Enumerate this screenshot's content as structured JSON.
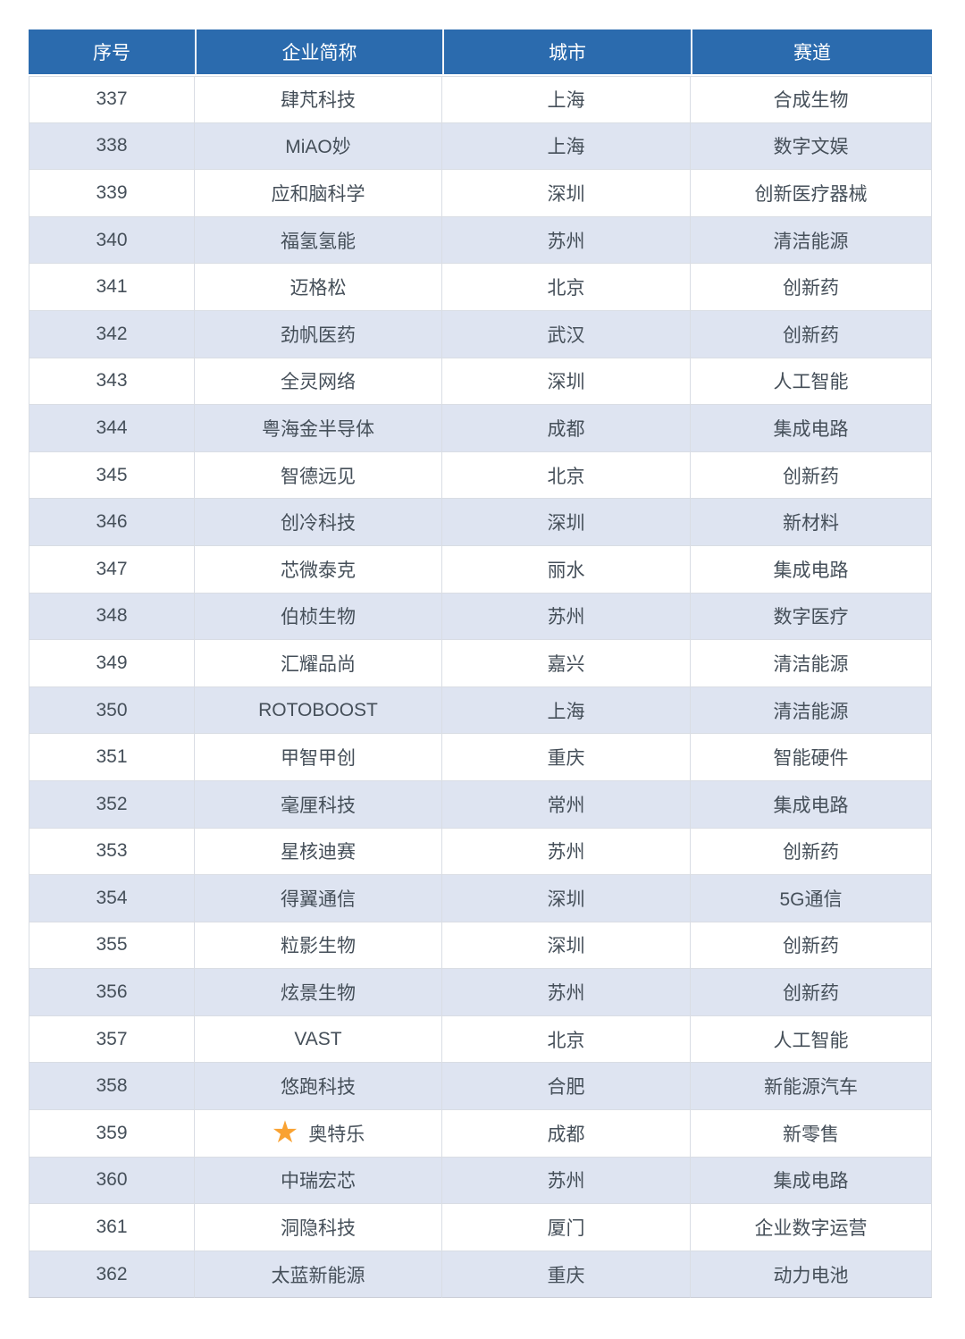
{
  "table": {
    "headers": [
      {
        "key": "no",
        "label": "序号"
      },
      {
        "key": "company",
        "label": "企业简称"
      },
      {
        "key": "city",
        "label": "城市"
      },
      {
        "key": "track",
        "label": "赛道"
      }
    ],
    "rows": [
      {
        "no": "337",
        "company": "肆芃科技",
        "city": "上海",
        "track": "合成生物",
        "starred": false
      },
      {
        "no": "338",
        "company": "MiAO妙",
        "city": "上海",
        "track": "数字文娱",
        "starred": false
      },
      {
        "no": "339",
        "company": "应和脑科学",
        "city": "深圳",
        "track": "创新医疗器械",
        "starred": false
      },
      {
        "no": "340",
        "company": "福氢氢能",
        "city": "苏州",
        "track": "清洁能源",
        "starred": false
      },
      {
        "no": "341",
        "company": "迈格松",
        "city": "北京",
        "track": "创新药",
        "starred": false
      },
      {
        "no": "342",
        "company": "劲帆医药",
        "city": "武汉",
        "track": "创新药",
        "starred": false
      },
      {
        "no": "343",
        "company": "全灵网络",
        "city": "深圳",
        "track": "人工智能",
        "starred": false
      },
      {
        "no": "344",
        "company": "粤海金半导体",
        "city": "成都",
        "track": "集成电路",
        "starred": false
      },
      {
        "no": "345",
        "company": "智德远见",
        "city": "北京",
        "track": "创新药",
        "starred": false
      },
      {
        "no": "346",
        "company": "创冷科技",
        "city": "深圳",
        "track": "新材料",
        "starred": false
      },
      {
        "no": "347",
        "company": "芯微泰克",
        "city": "丽水",
        "track": "集成电路",
        "starred": false
      },
      {
        "no": "348",
        "company": "伯桢生物",
        "city": "苏州",
        "track": "数字医疗",
        "starred": false
      },
      {
        "no": "349",
        "company": "汇耀品尚",
        "city": "嘉兴",
        "track": "清洁能源",
        "starred": false
      },
      {
        "no": "350",
        "company": "ROTOBOOST",
        "city": "上海",
        "track": "清洁能源",
        "starred": false
      },
      {
        "no": "351",
        "company": "甲智甲创",
        "city": "重庆",
        "track": "智能硬件",
        "starred": false
      },
      {
        "no": "352",
        "company": "毫厘科技",
        "city": "常州",
        "track": "集成电路",
        "starred": false
      },
      {
        "no": "353",
        "company": "星核迪赛",
        "city": "苏州",
        "track": "创新药",
        "starred": false
      },
      {
        "no": "354",
        "company": "得翼通信",
        "city": "深圳",
        "track": "5G通信",
        "starred": false
      },
      {
        "no": "355",
        "company": "粒影生物",
        "city": "深圳",
        "track": "创新药",
        "starred": false
      },
      {
        "no": "356",
        "company": "炫景生物",
        "city": "苏州",
        "track": "创新药",
        "starred": false
      },
      {
        "no": "357",
        "company": "VAST",
        "city": "北京",
        "track": "人工智能",
        "starred": false
      },
      {
        "no": "358",
        "company": "悠跑科技",
        "city": "合肥",
        "track": "新能源汽车",
        "starred": false
      },
      {
        "no": "359",
        "company": "奥特乐",
        "city": "成都",
        "track": "新零售",
        "starred": true
      },
      {
        "no": "360",
        "company": "中瑞宏芯",
        "city": "苏州",
        "track": "集成电路",
        "starred": false
      },
      {
        "no": "361",
        "company": "洞隐科技",
        "city": "厦门",
        "track": "企业数字运营",
        "starred": false
      },
      {
        "no": "362",
        "company": "太蓝新能源",
        "city": "重庆",
        "track": "动力电池",
        "starred": false
      }
    ]
  },
  "icons": {
    "star_icon": "★"
  },
  "colors": {
    "header_bg": "#2B6BAE",
    "header_text": "#FFFFFF",
    "alt_row_bg": "#DEE4F1",
    "row_bg": "#FFFFFF",
    "border": "#D9DDE4",
    "text": "#454F59",
    "star": "#F9A232"
  }
}
